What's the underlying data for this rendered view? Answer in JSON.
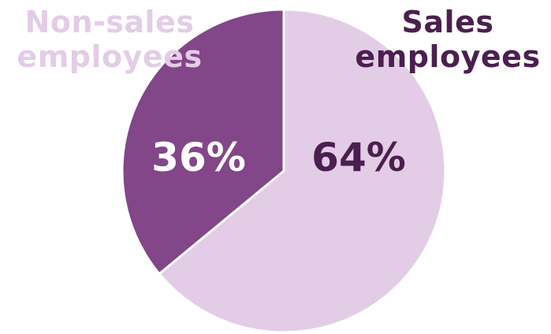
{
  "colors": {
    "sales": "#e3cde6",
    "non_sales": "#834689",
    "sales_text": "#4b1f4f",
    "non_sales_text": "#ffffff",
    "non_sales_label": "#e3cde6",
    "slice_border": "#ffffff"
  },
  "labels": {
    "non_sales_line1": "Non-sales",
    "non_sales_line2": "employees",
    "sales_line1": "Sales",
    "sales_line2": "employees"
  },
  "chart_data": {
    "type": "pie",
    "categories": [
      "Sales employees",
      "Non-sales employees"
    ],
    "values": [
      64,
      36
    ],
    "data_labels": [
      "64%",
      "36%"
    ],
    "start_angle_deg": 0,
    "direction": "clockwise",
    "legend": "none"
  }
}
